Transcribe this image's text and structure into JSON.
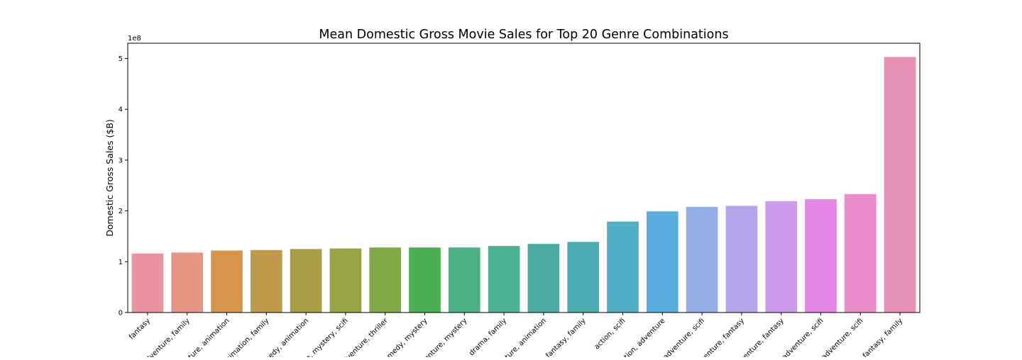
{
  "chart_data": {
    "type": "bar",
    "title": "Mean Domestic Gross Movie Sales for Top 20 Genre Combinations",
    "xlabel": "",
    "ylabel": "Domestic Gross Sales ($B)",
    "y_offset_label": "1e8",
    "ylim": [
      0,
      5.3
    ],
    "y_ticks": [
      0,
      1,
      2,
      3,
      4,
      5
    ],
    "y_tick_labels": [
      "0",
      "1",
      "2",
      "3",
      "4",
      "5"
    ],
    "grid": false,
    "legend": "none",
    "categories": [
      "fantasy",
      "adventure, family",
      "adventure, animation",
      "animation, family",
      "comedy, animation",
      "action, mystery, scifi",
      "adventure, thriller",
      "comedy, mystery",
      "adventure, mystery",
      "drama, family",
      "adventure, animation",
      "fantasy, family",
      "action, scifi",
      "action, adventure",
      "adventure, scifi",
      "adventure, fantasy",
      "adventure, fantasy",
      "adventure, scifi",
      "adventure, scifi",
      "fantasy, family"
    ],
    "values": [
      1.16,
      1.18,
      1.22,
      1.23,
      1.25,
      1.26,
      1.28,
      1.28,
      1.28,
      1.31,
      1.35,
      1.39,
      1.79,
      1.99,
      2.08,
      2.1,
      2.19,
      2.23,
      2.33,
      5.03
    ],
    "colors": [
      "#e8949f",
      "#e59683",
      "#d7944c",
      "#bf9a4a",
      "#aa9d47",
      "#99a447",
      "#80a947",
      "#4baf52",
      "#4caf85",
      "#4ab195",
      "#4aaba3",
      "#4cacb3",
      "#50aec6",
      "#5aacde",
      "#96aee6",
      "#b6a5ed",
      "#cd9bea",
      "#e486e5",
      "#e98ecb",
      "#e891b7"
    ]
  }
}
